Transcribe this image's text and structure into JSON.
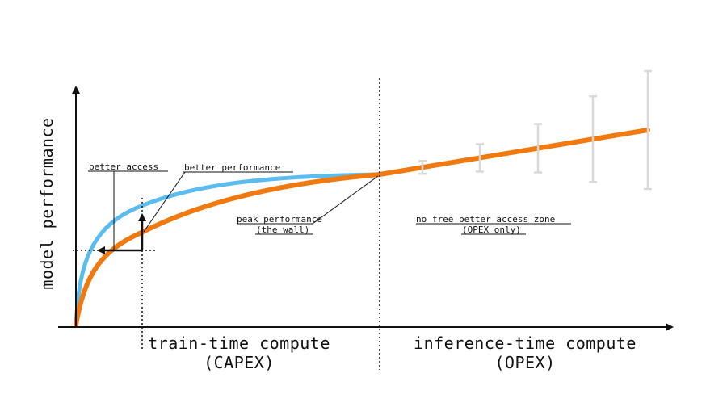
{
  "diagram": {
    "y_axis_label": "model performance",
    "x_axis_left_label": {
      "line1": "train-time compute",
      "line2": "(CAPEX)"
    },
    "x_axis_right_label": {
      "line1": "inference-time compute",
      "line2": "(OPEX)"
    },
    "annotations": {
      "better_access": "better access",
      "better_performance": "better performance",
      "peak_performance": {
        "line1": "peak performance",
        "line2": "(the wall)"
      },
      "no_free_zone": {
        "line1": "no free better access zone",
        "line2": "(OPEX only)"
      }
    },
    "colors": {
      "blue_curve": "#5BBCF0",
      "orange_curve": "#F07A10",
      "error_bars": "#D9D9D9",
      "ink": "#111111"
    },
    "inference_points": [
      {
        "step": 1,
        "uncertainty": 1
      },
      {
        "step": 2,
        "uncertainty": 2
      },
      {
        "step": 3,
        "uncertainty": 3
      },
      {
        "step": 4,
        "uncertainty": 4
      },
      {
        "step": 5,
        "uncertainty": 5
      }
    ]
  }
}
